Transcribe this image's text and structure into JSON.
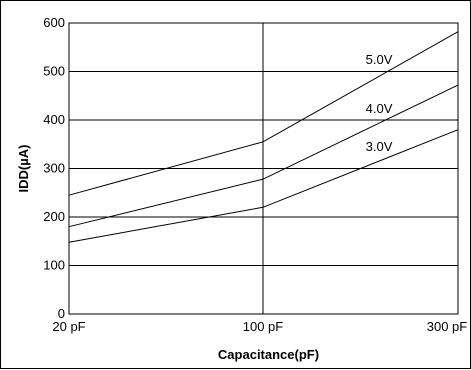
{
  "chart_data": {
    "type": "line",
    "xlabel": "Capacitance(pF)",
    "ylabel": "IDD(µA)",
    "x_ticks": [
      "20 pF",
      "100 pF",
      "300 pF"
    ],
    "y_ticks": [
      "0",
      "100",
      "200",
      "300",
      "400",
      "500",
      "600"
    ],
    "ylim": [
      0,
      600
    ],
    "grid": true,
    "categories": [
      "20 pF",
      "100 pF",
      "300 pF"
    ],
    "series": [
      {
        "name": "5.0V",
        "values": [
          245,
          355,
          582
        ]
      },
      {
        "name": "4.0V",
        "values": [
          180,
          278,
          472
        ]
      },
      {
        "name": "3.0V",
        "values": [
          148,
          220,
          380
        ]
      }
    ]
  }
}
